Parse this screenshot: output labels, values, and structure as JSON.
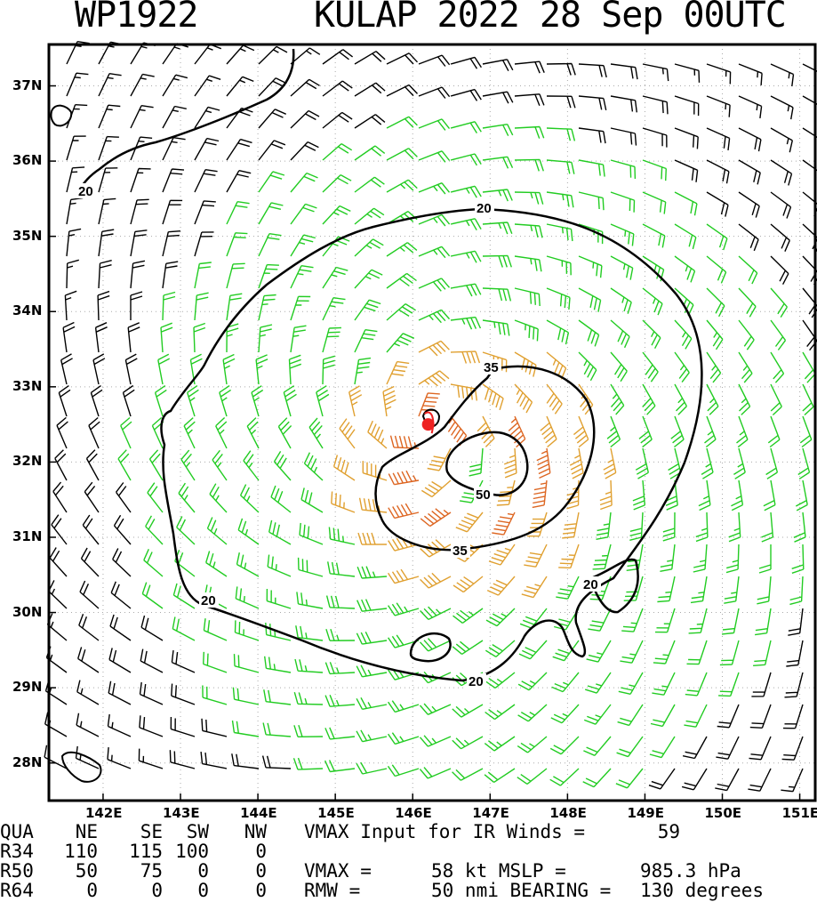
{
  "header": {
    "storm_id": "WP1922",
    "storm_title": "KULAP 2022 28 Sep 00UTC"
  },
  "colors": {
    "frame": "#000000",
    "barb_weak": "#000000",
    "barb_34kt": "#22cc22",
    "barb_50kt": "#e0a030",
    "barb_64kt": "#dd6622",
    "center_marker": "#ee2222",
    "grid": "#aaaaaa"
  },
  "chart_data": {
    "type": "wind_barb_map",
    "title": "KULAP 2022 28 Sep 00UTC",
    "lon_range": [
      141.3,
      151.2
    ],
    "lat_range": [
      27.5,
      37.55
    ],
    "x_ticks": [
      "142E",
      "143E",
      "144E",
      "145E",
      "146E",
      "147E",
      "148E",
      "149E",
      "150E",
      "151E"
    ],
    "y_ticks": [
      "28N",
      "29N",
      "30N",
      "31N",
      "32N",
      "33N",
      "34N",
      "35N",
      "36N",
      "37N"
    ],
    "grid": "dotted",
    "center": {
      "lon": 146.2,
      "lat": 32.5
    },
    "contours": [
      {
        "label": "20",
        "level": 20
      },
      {
        "label": "35",
        "level": 35
      },
      {
        "label": "50",
        "level": 50
      }
    ],
    "wind_field": {
      "vmax_kt": 58,
      "rmw_nmi": 50,
      "bearing_deg": 130,
      "r34_nmi": {
        "NE": 110,
        "SE": 115,
        "SW": 100,
        "NW": 0
      },
      "r50_nmi": {
        "NE": 50,
        "SE": 75,
        "SW": 0,
        "NW": 0
      },
      "r64_nmi": {
        "NE": 0,
        "SE": 0,
        "SW": 0,
        "NW": 0
      }
    }
  },
  "footer": {
    "rows": [
      [
        "QUA",
        "NE",
        "SE",
        "SW",
        "NW",
        "VMAX Input for IR Winds =",
        "59",
        "",
        ""
      ],
      [
        "R34",
        "110",
        "115",
        "100",
        "0",
        "",
        "",
        "",
        ""
      ],
      [
        "R50",
        "50",
        "75",
        "0",
        "0",
        "VMAX =",
        "58 kt MSLP =",
        "985.3 hPa",
        ""
      ],
      [
        "R64",
        "0",
        "0",
        "0",
        "0",
        "RMW =",
        "50 nmi BEARING =",
        "130 degrees",
        ""
      ]
    ]
  }
}
